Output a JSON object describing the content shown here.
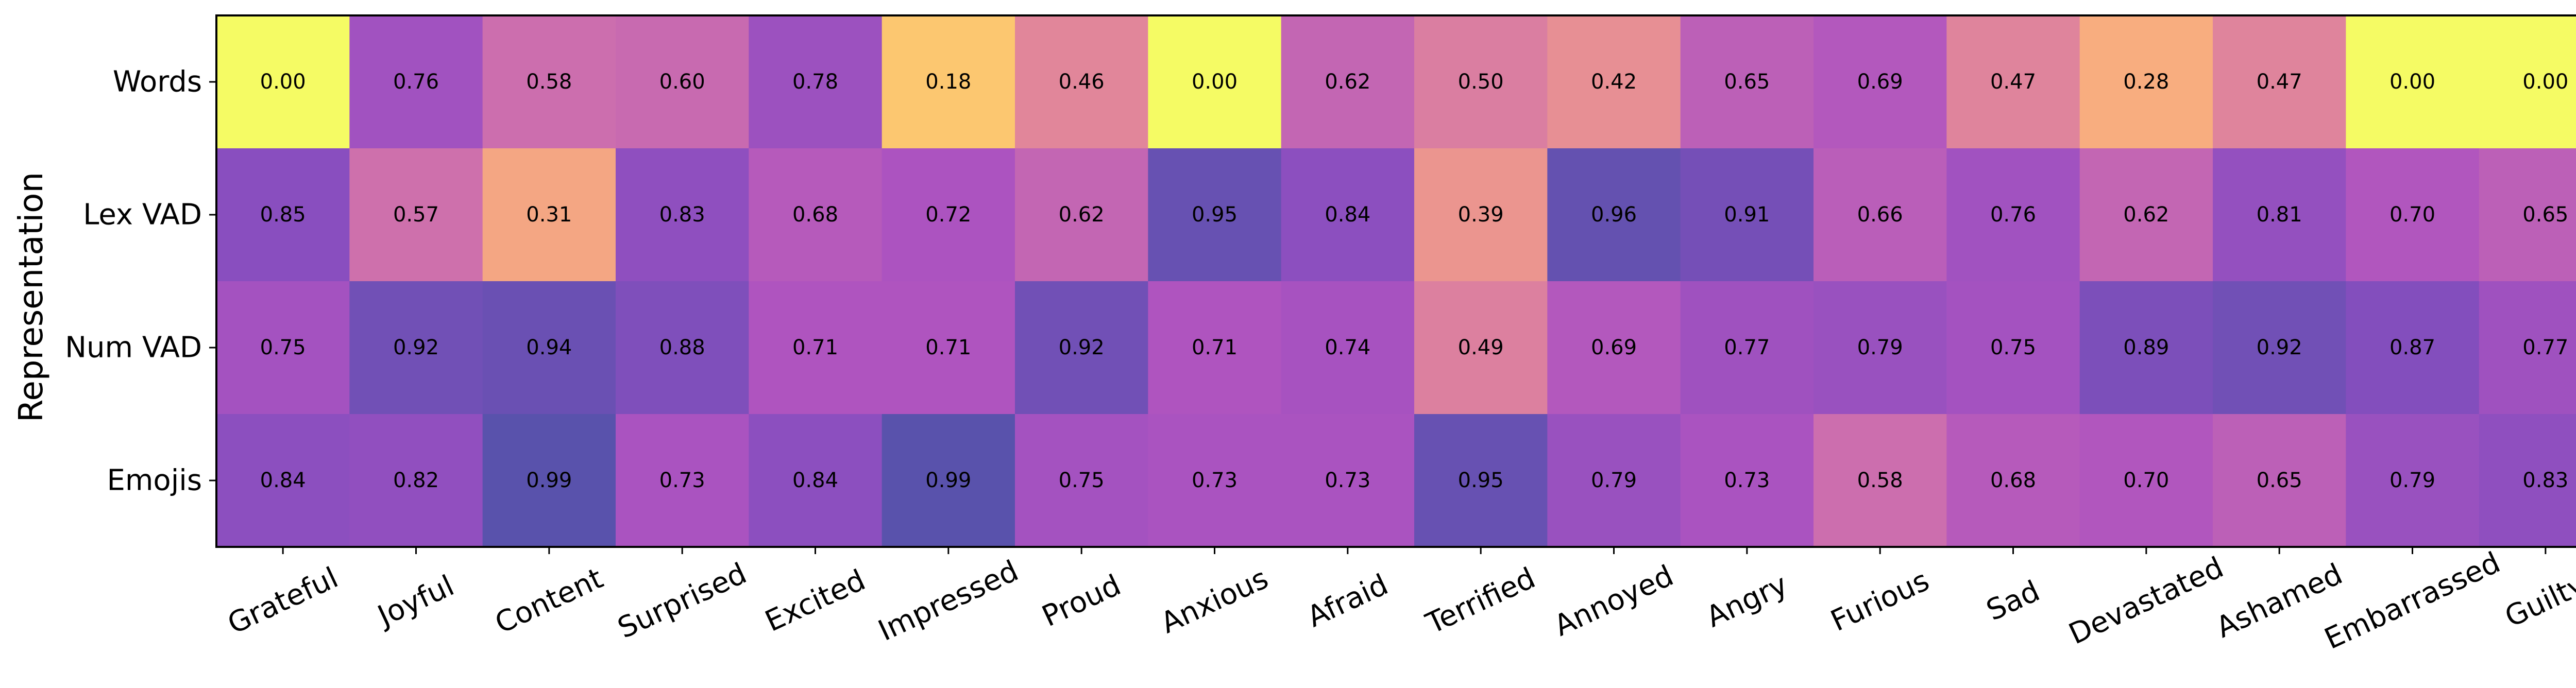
{
  "chart_data": {
    "type": "heatmap",
    "title": "",
    "xlabel": "",
    "ylabel": "Representation",
    "rows": [
      "Words",
      "Lex VAD",
      "Num VAD",
      "Emojis"
    ],
    "columns": [
      "Grateful",
      "Joyful",
      "Content",
      "Surprised",
      "Excited",
      "Impressed",
      "Proud",
      "Anxious",
      "Afraid",
      "Terrified",
      "Annoyed",
      "Angry",
      "Furious",
      "Sad",
      "Devastated",
      "Ashamed",
      "Embarrassed",
      "Guilty"
    ],
    "values": [
      [
        0.0,
        0.76,
        0.58,
        0.6,
        0.78,
        0.18,
        0.46,
        0.0,
        0.62,
        0.5,
        0.42,
        0.65,
        0.69,
        0.47,
        0.28,
        0.47,
        0.0,
        0.0
      ],
      [
        0.85,
        0.57,
        0.31,
        0.83,
        0.68,
        0.72,
        0.62,
        0.95,
        0.84,
        0.39,
        0.96,
        0.91,
        0.66,
        0.76,
        0.62,
        0.81,
        0.7,
        0.65
      ],
      [
        0.75,
        0.92,
        0.94,
        0.88,
        0.71,
        0.71,
        0.92,
        0.71,
        0.74,
        0.49,
        0.69,
        0.77,
        0.79,
        0.75,
        0.89,
        0.92,
        0.87,
        0.77
      ],
      [
        0.84,
        0.82,
        0.99,
        0.73,
        0.84,
        0.99,
        0.75,
        0.73,
        0.73,
        0.95,
        0.79,
        0.73,
        0.58,
        0.68,
        0.7,
        0.65,
        0.79,
        0.83
      ]
    ],
    "colormap": "plasma_r",
    "vmin": 0,
    "vmax": 1,
    "cell_opacity": 0.7,
    "value_format": "2 decimals",
    "grid": false,
    "x_tick_rotation": 25
  }
}
